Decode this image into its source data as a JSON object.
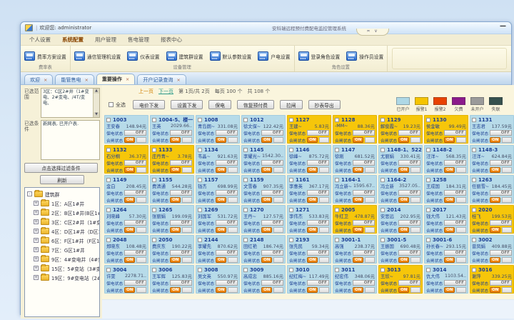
{
  "window": {
    "welcome": "欢迎您: administrator",
    "title": "安科瑞远程预付费配电监控管理系统",
    "notch": "≍ ∨",
    "minimize": "—"
  },
  "menu": {
    "tabs": [
      {
        "label": "个人设置",
        "active": false
      },
      {
        "label": "系统配置",
        "active": true
      },
      {
        "label": "用户管理",
        "active": false
      },
      {
        "label": "售电管理",
        "active": false
      },
      {
        "label": "报表中心",
        "active": false
      }
    ]
  },
  "ribbon": {
    "groups": [
      {
        "label": "费率表",
        "buttons": [
          "费率方案设置"
        ]
      },
      {
        "label": "设备管理",
        "buttons": [
          "通信管理机设置",
          "仪表设置",
          "建筑群设置",
          "默认参数设置",
          "户电设置"
        ]
      },
      {
        "label": "角色设置",
        "buttons": [
          "登录角色设置",
          "操作员设置"
        ]
      }
    ]
  },
  "doc_tabs": [
    {
      "label": "欢迎",
      "close": "×",
      "active": false
    },
    {
      "label": "能管售电",
      "close": "×",
      "active": false
    },
    {
      "label": "重要操作",
      "close": "×",
      "active": true
    },
    {
      "label": "开户记录查询",
      "close": "×",
      "active": false
    }
  ],
  "sidebar": {
    "range_label": "已选范围",
    "range_text": "3区：C区2#井（1#变电、2#变电、/4T/变电、",
    "cond_label": "已选条件",
    "cond_text": "新网表, 已开户表.",
    "filter_button": "点击选择过滤条件",
    "refresh_button": "刷新",
    "tree_root": "建筑群",
    "tree_items": [
      "1区：A区1#井",
      "2区：B区1#井(B区1#…",
      "3区：C区2#井（1#变…",
      "4区：D区1#井（D区1…",
      "6区：F区1#井（F区1#…",
      "7区：G区1#井",
      "9区：4#变电井（4#变…",
      "15区：5#变站（3#变…",
      "19区：9#变电站（2#…"
    ]
  },
  "toolbar": {
    "pagination": {
      "prev": "上一页",
      "next": "下一页",
      "page_info": "第 1页/共 2页",
      "per_page": "每页 100 个",
      "total": "共 108 个"
    },
    "select_all": "全选",
    "buttons": [
      "电价下发",
      "设置下发",
      "保电",
      "恢复预付费",
      "拉闸",
      "抄表导出"
    ],
    "legend": [
      {
        "label": "已开户",
        "color": "#aed8e6"
      },
      {
        "label": "报警1",
        "color": "#f5c400"
      },
      {
        "label": "报警2",
        "color": "#e84200"
      },
      {
        "label": "欠费",
        "color": "#8b1a8b"
      },
      {
        "label": "未开户",
        "color": "#9a9a9a"
      },
      {
        "label": "失联",
        "color": "#36514e"
      }
    ]
  },
  "cards": {
    "labels": {
      "baodian": "保电状态",
      "hezha": "合闸状态",
      "off": "OFF",
      "on": "ON"
    },
    "items": [
      {
        "id": "1003",
        "name": "王安春",
        "balance": "148.94元",
        "status": "blue"
      },
      {
        "id": "1004-5、楼一",
        "name": "王英",
        "balance": "2029.66..",
        "status": "blue"
      },
      {
        "id": "1008",
        "name": "青岛朗~",
        "balance": "331.08元",
        "status": "blue"
      },
      {
        "id": "1012",
        "name": "徐文保~",
        "balance": "122.42元",
        "status": "blue"
      },
      {
        "id": "1127",
        "name": "王建~",
        "balance": "5.83元",
        "status": "yellow"
      },
      {
        "id": "1128",
        "name": "-MM~",
        "balance": "88.36元",
        "status": "yellow"
      },
      {
        "id": "1129",
        "name": "解俊霞~",
        "balance": "19.23元",
        "status": "yellow"
      },
      {
        "id": "1130",
        "name": "侯金敏",
        "balance": "99.49元",
        "status": "yellow"
      },
      {
        "id": "1131",
        "name": "王志君",
        "balance": "137.59元",
        "status": "blue"
      },
      {
        "id": "1132",
        "name": "石分桐",
        "balance": "36.37元",
        "status": "yellow"
      },
      {
        "id": "1133",
        "name": "庄丹青~",
        "balance": "3.78元",
        "status": "yellow"
      },
      {
        "id": "1134",
        "name": "韦晶~",
        "balance": "921.63元",
        "status": "blue"
      },
      {
        "id": "1145",
        "name": "李耀光~",
        "balance": "1542.30..",
        "status": "blue"
      },
      {
        "id": "1146",
        "name": "徐峰~",
        "balance": "875.72元",
        "status": "blue"
      },
      {
        "id": "1147",
        "name": "徐刚",
        "balance": "681.52元",
        "status": "blue"
      },
      {
        "id": "1148-1、522",
        "name": "尤丽娟",
        "balance": "330.41元",
        "status": "blue"
      },
      {
        "id": "1148-2",
        "name": "汪洋~",
        "balance": "568.35元",
        "status": "blue"
      },
      {
        "id": "1148-3",
        "name": "汪洋~",
        "balance": "624.84元",
        "status": "blue"
      },
      {
        "id": "1149",
        "name": "金白",
        "balance": "208.45元",
        "status": "blue"
      },
      {
        "id": "1155",
        "name": "费清通",
        "balance": "544.28元",
        "status": "blue"
      },
      {
        "id": "1157",
        "name": "钱杰",
        "balance": "698.99元",
        "status": "blue"
      },
      {
        "id": "1159",
        "name": "文雪春",
        "balance": "907.35元",
        "status": "blue"
      },
      {
        "id": "1161",
        "name": "李惠英",
        "balance": "367.17元",
        "status": "blue"
      },
      {
        "id": "1164-1",
        "name": "冯立新~",
        "balance": "1595.67..",
        "status": "blue"
      },
      {
        "id": "1164-2",
        "name": "冯立新",
        "balance": "3527.05..",
        "status": "blue"
      },
      {
        "id": "1258",
        "name": "王成国",
        "balance": "184.31元",
        "status": "blue"
      },
      {
        "id": "1263",
        "name": "任丽雪~",
        "balance": "184.45元",
        "status": "blue"
      },
      {
        "id": "1264",
        "name": "刘晓峰",
        "balance": "57.30元",
        "status": "blue"
      },
      {
        "id": "1265",
        "name": "张丽娟",
        "balance": "199.09元",
        "status": "blue"
      },
      {
        "id": "1269",
        "name": "刘国军",
        "balance": "531.72元",
        "status": "blue"
      },
      {
        "id": "1270",
        "name": "王丹~",
        "balance": "127.57元",
        "status": "blue"
      },
      {
        "id": "1271",
        "name": "李伟杰",
        "balance": "533.83元",
        "status": "blue"
      },
      {
        "id": "2005",
        "name": "牛红卫",
        "balance": "478.87元",
        "status": "yellow"
      },
      {
        "id": "2014",
        "name": "安思远",
        "balance": "202.95元",
        "status": "blue"
      },
      {
        "id": "2017",
        "name": "钱大伟",
        "balance": "121.43元",
        "status": "blue"
      },
      {
        "id": "2020",
        "name": "桂飞",
        "balance": "199.53元",
        "status": "yellow"
      },
      {
        "id": "2048",
        "name": "郑晓东",
        "balance": "108.48元",
        "status": "blue"
      },
      {
        "id": "2050",
        "name": "费庆东",
        "balance": "190.22元",
        "status": "blue"
      },
      {
        "id": "2144",
        "name": "李耀先",
        "balance": "870.62元",
        "status": "blue"
      },
      {
        "id": "2148",
        "name": "田红艳",
        "balance": "186.74元",
        "status": "blue"
      },
      {
        "id": "2193",
        "name": "张先民",
        "balance": "59.34元",
        "status": "blue"
      },
      {
        "id": "3001-1",
        "name": "高强",
        "balance": "238.37元",
        "status": "blue"
      },
      {
        "id": "3001-5",
        "name": "王振国",
        "balance": "690.48元",
        "status": "blue"
      },
      {
        "id": "3001-6",
        "name": "孙长春~",
        "balance": "293.15元",
        "status": "blue"
      },
      {
        "id": "3002",
        "name": "曾凤娟",
        "balance": "409.88元",
        "status": "blue"
      },
      {
        "id": "3004",
        "name": "许雯",
        "balance": "2278.71..",
        "status": "blue"
      },
      {
        "id": "3006",
        "name": "王军辉",
        "balance": "125.83元",
        "status": "blue"
      },
      {
        "id": "3008",
        "name": "吴文英",
        "balance": "550.97元",
        "status": "blue"
      },
      {
        "id": "3009",
        "name": "高成忠",
        "balance": "885.16元",
        "status": "blue"
      },
      {
        "id": "3010",
        "name": "纪红梅~",
        "balance": "117.49元",
        "status": "blue"
      },
      {
        "id": "3011",
        "name": "纪宏伟",
        "balance": "348.06元",
        "status": "blue"
      },
      {
        "id": "3013",
        "name": "王欣~",
        "balance": "97.81元",
        "status": "yellow"
      },
      {
        "id": "3014",
        "name": "仇大伟",
        "balance": "1103.54..",
        "status": "blue"
      },
      {
        "id": "3016",
        "name": "谢萍",
        "balance": "339.25元",
        "status": "yellow"
      }
    ]
  }
}
